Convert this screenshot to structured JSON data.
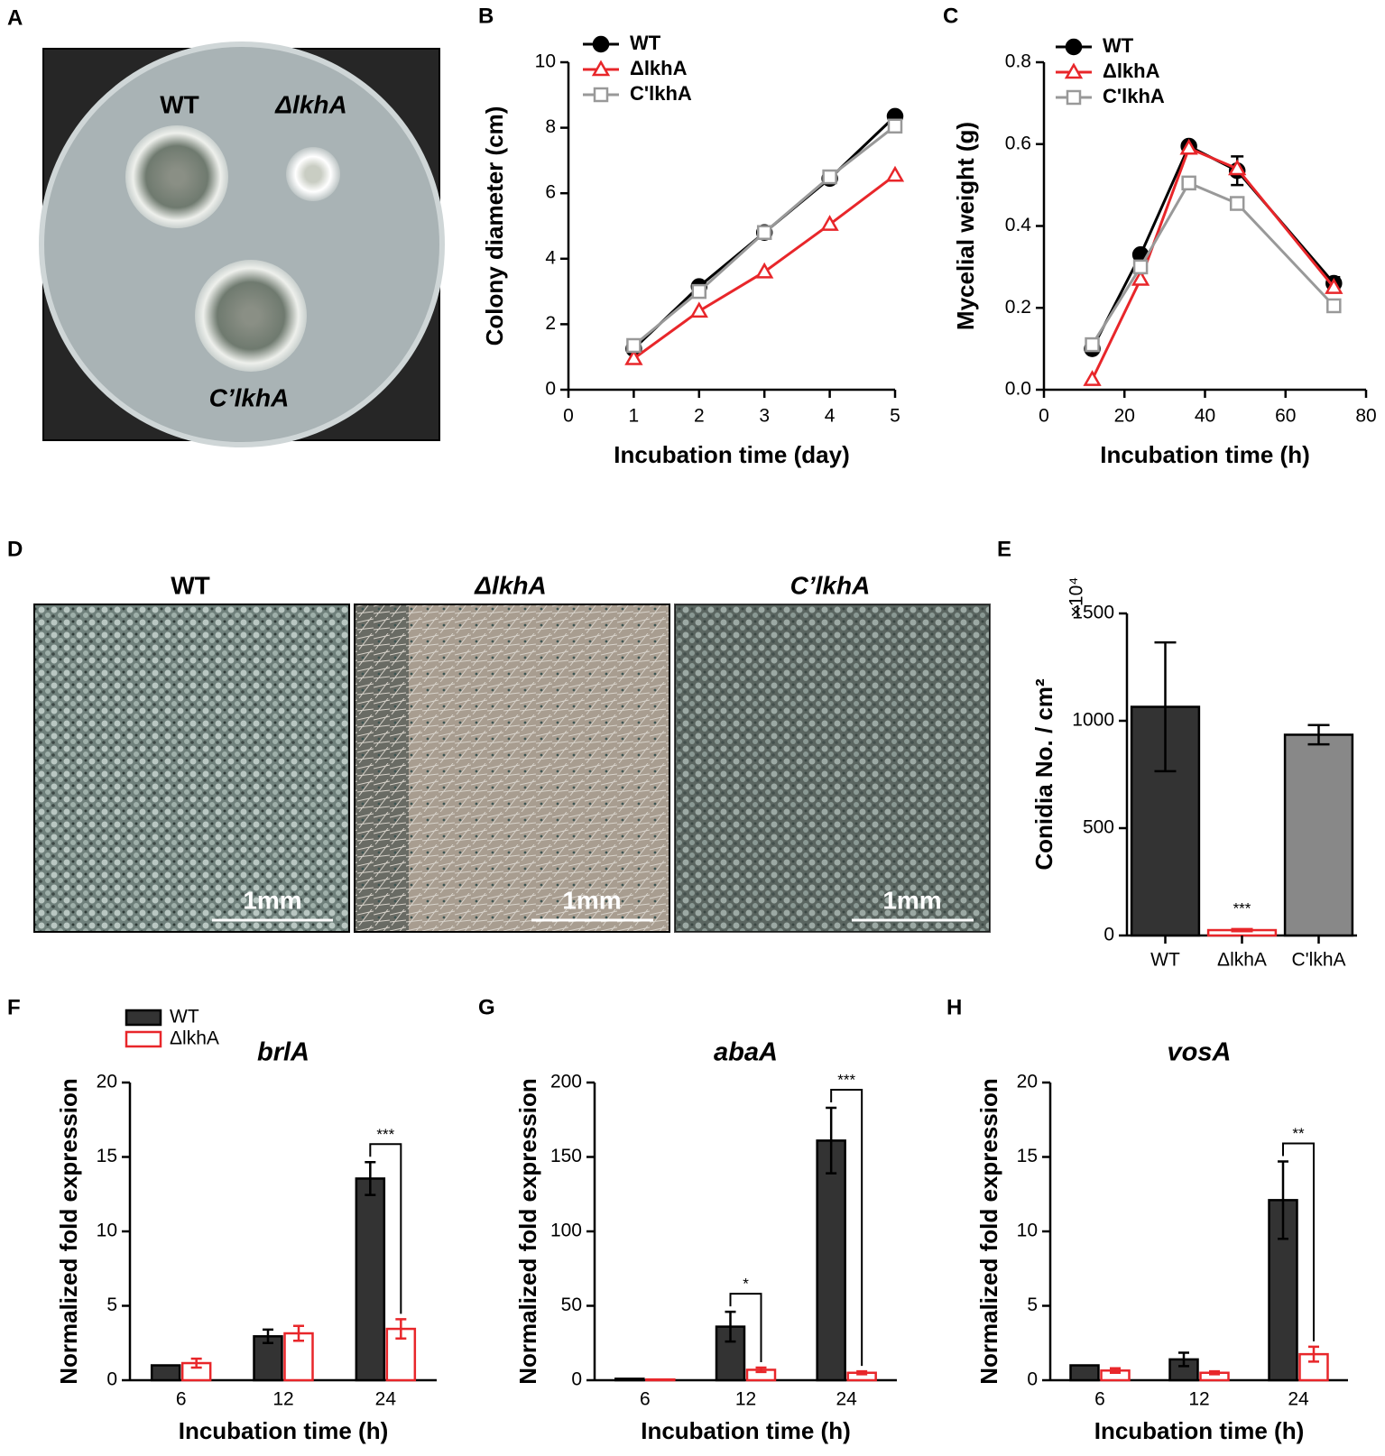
{
  "photos": {
    "a": {
      "panel": "A",
      "labels": [
        "WT",
        "ΔlkhA",
        "C’lkhA"
      ]
    },
    "d": {
      "panel": "D",
      "titles": [
        "WT",
        "ΔlkhA",
        "C’lkhA"
      ],
      "scale_bars": [
        "1mm",
        "1mm",
        "1mm"
      ]
    }
  },
  "chart_data": [
    {
      "type": "line",
      "panel": "B",
      "xlabel": "Incubation time (day)",
      "ylabel": "Colony diameter (cm)",
      "x": [
        1,
        2,
        3,
        4,
        5
      ],
      "xlim": [
        0,
        5
      ],
      "xticks": [
        0,
        1,
        2,
        3,
        4,
        5
      ],
      "ylim": [
        0,
        10
      ],
      "yticks": [
        0,
        2,
        4,
        6,
        8,
        10
      ],
      "series": [
        {
          "name": "WT",
          "color": "#000000",
          "marker": "circle",
          "values": [
            1.25,
            3.15,
            4.8,
            6.45,
            8.35
          ]
        },
        {
          "name": "ΔlkhA",
          "color": "#e8262a",
          "marker": "triangle",
          "values": [
            0.95,
            2.4,
            3.6,
            5.05,
            6.55
          ]
        },
        {
          "name": "C'lkhA",
          "color": "#999999",
          "marker": "square",
          "values": [
            1.35,
            3.0,
            4.8,
            6.5,
            8.05
          ]
        }
      ]
    },
    {
      "type": "line",
      "panel": "C",
      "xlabel": "Incubation time (h)",
      "ylabel": "Mycelial weight (g)",
      "x": [
        12,
        24,
        36,
        48,
        72
      ],
      "xlim": [
        0,
        80
      ],
      "xticks": [
        0,
        20,
        40,
        60,
        80
      ],
      "ylim": [
        0,
        0.8
      ],
      "yticks": [
        {
          "value": 0,
          "label": "0.0"
        },
        0.2,
        0.4,
        0.6,
        0.8
      ],
      "series": [
        {
          "name": "WT",
          "color": "#000000",
          "marker": "circle",
          "values": [
            0.1,
            0.33,
            0.595,
            0.535,
            0.26
          ],
          "errors": [
            null,
            null,
            null,
            0.035,
            0.015
          ]
        },
        {
          "name": "ΔlkhA",
          "color": "#e8262a",
          "marker": "triangle",
          "values": [
            0.025,
            0.27,
            0.59,
            0.54,
            0.25
          ]
        },
        {
          "name": "C'lkhA",
          "color": "#999999",
          "marker": "square",
          "values": [
            0.11,
            0.3,
            0.505,
            0.455,
            0.205
          ]
        }
      ]
    },
    {
      "type": "bar",
      "panel": "E",
      "ylabel": "Conidia  No. / cm²",
      "unit_label": "×10⁴",
      "categories": [
        "WT",
        "ΔlkhA",
        "C'lkhA"
      ],
      "values": [
        1065,
        25,
        935
      ],
      "errors": [
        300,
        5,
        45
      ],
      "colors": [
        "#333333",
        "#ffffff",
        "#888888"
      ],
      "edge_colors": [
        "#000000",
        "#e8262a",
        "#000000"
      ],
      "significance": [
        null,
        "***",
        null
      ],
      "ylim": [
        0,
        1500
      ],
      "yticks": [
        0,
        500,
        1000,
        1500
      ]
    },
    {
      "type": "grouped-bar",
      "panel": "F",
      "title": "brlA",
      "xlabel": "Incubation time (h)",
      "ylabel": "Normalized fold expression",
      "legend": true,
      "categories": [
        "6",
        "12",
        "24"
      ],
      "ylim": [
        0,
        20
      ],
      "yticks": [
        0,
        5,
        10,
        15,
        20
      ],
      "significance": [
        null,
        null,
        "***"
      ],
      "series": [
        {
          "name": "WT",
          "color": "#333333",
          "edge_color": "#000000",
          "values": [
            1.0,
            2.95,
            13.55
          ],
          "errors": [
            null,
            0.45,
            1.1
          ]
        },
        {
          "name": "ΔlkhA",
          "color": "#ffffff",
          "edge_color": "#e8262a",
          "values": [
            1.15,
            3.15,
            3.45
          ],
          "errors": [
            0.3,
            0.5,
            0.65
          ]
        }
      ]
    },
    {
      "type": "grouped-bar",
      "panel": "G",
      "title": "abaA",
      "xlabel": "Incubation time (h)",
      "ylabel": "Normalized fold expression",
      "categories": [
        "6",
        "12",
        "24"
      ],
      "ylim": [
        0,
        200
      ],
      "yticks": [
        0,
        50,
        100,
        150,
        200
      ],
      "significance": [
        null,
        "*",
        "***"
      ],
      "series": [
        {
          "color": "#333333",
          "edge_color": "#000000",
          "values": [
            1,
            36,
            161
          ],
          "errors": [
            null,
            10,
            22
          ]
        },
        {
          "color": "#ffffff",
          "edge_color": "#e8262a",
          "values": [
            0.5,
            7,
            5
          ],
          "errors": [
            null,
            1.5,
            1
          ]
        }
      ]
    },
    {
      "type": "grouped-bar",
      "panel": "H",
      "title": "vosA",
      "xlabel": "Incubation time (h)",
      "ylabel": "Normalized fold expression",
      "categories": [
        "6",
        "12",
        "24"
      ],
      "ylim": [
        0,
        20
      ],
      "yticks": [
        0,
        5,
        10,
        15,
        20
      ],
      "significance": [
        null,
        null,
        "**"
      ],
      "series": [
        {
          "color": "#333333",
          "edge_color": "#000000",
          "values": [
            1.0,
            1.4,
            12.1
          ],
          "errors": [
            null,
            0.45,
            2.6
          ]
        },
        {
          "color": "#ffffff",
          "edge_color": "#e8262a",
          "values": [
            0.65,
            0.5,
            1.75
          ],
          "errors": [
            0.15,
            0.1,
            0.5
          ]
        }
      ]
    }
  ]
}
